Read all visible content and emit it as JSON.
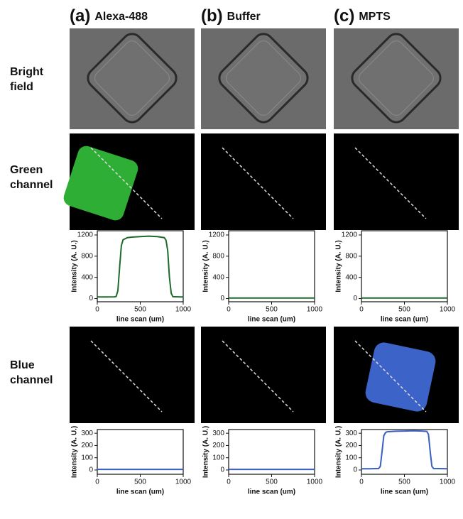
{
  "figure": {
    "columns": [
      {
        "letter": "(a)",
        "name": "Alexa-488"
      },
      {
        "letter": "(b)",
        "name": "Buffer"
      },
      {
        "letter": "(c)",
        "name": "MPTS"
      }
    ],
    "rows": [
      [
        "Bright",
        "field"
      ],
      [
        "Green",
        "channel"
      ],
      [
        "Blue",
        "channel"
      ]
    ]
  },
  "chart_data": [
    {
      "type": "line",
      "xlabel": "line scan (um)",
      "ylabel": "Intensity (A. U.)",
      "xlim": [
        0,
        1000
      ],
      "ylim": [
        -60,
        1280
      ],
      "xticks": [
        0,
        500,
        1000
      ],
      "yticks": [
        0,
        400,
        800,
        1200
      ],
      "color": "#1d6b2c",
      "x": [
        0,
        100,
        200,
        220,
        240,
        260,
        280,
        300,
        350,
        400,
        500,
        600,
        700,
        780,
        800,
        820,
        840,
        860,
        880,
        1000
      ],
      "values": [
        30,
        30,
        32,
        40,
        150,
        600,
        1000,
        1110,
        1150,
        1160,
        1170,
        1178,
        1170,
        1150,
        1100,
        900,
        400,
        100,
        35,
        30
      ]
    },
    {
      "type": "line",
      "xlabel": "line scan (um)",
      "ylabel": "Intensity (A. U.)",
      "xlim": [
        0,
        1000
      ],
      "ylim": [
        -60,
        1280
      ],
      "xticks": [
        0,
        500,
        1000
      ],
      "yticks": [
        0,
        400,
        800,
        1200
      ],
      "color": "#1d6b2c",
      "x": [
        0,
        250,
        500,
        750,
        1000
      ],
      "values": [
        10,
        10,
        10,
        10,
        10
      ]
    },
    {
      "type": "line",
      "xlabel": "line scan (um)",
      "ylabel": "Intensity (A. U.)",
      "xlim": [
        0,
        1000
      ],
      "ylim": [
        -60,
        1280
      ],
      "xticks": [
        0,
        500,
        1000
      ],
      "yticks": [
        0,
        400,
        800,
        1200
      ],
      "color": "#1d6b2c",
      "x": [
        0,
        250,
        500,
        750,
        1000
      ],
      "values": [
        10,
        10,
        10,
        10,
        10
      ]
    },
    {
      "type": "line",
      "xlabel": "line scan (um)",
      "ylabel": "Intensity (A. U.)",
      "xlim": [
        0,
        1000
      ],
      "ylim": [
        -35,
        330
      ],
      "xticks": [
        0,
        500,
        1000
      ],
      "yticks": [
        0,
        100,
        200,
        300
      ],
      "color": "#3a5fc0",
      "x": [
        0,
        250,
        500,
        750,
        1000
      ],
      "values": [
        5,
        5,
        5,
        5,
        5
      ]
    },
    {
      "type": "line",
      "xlabel": "line scan (um)",
      "ylabel": "Intensity (A. U.)",
      "xlim": [
        0,
        1000
      ],
      "ylim": [
        -35,
        330
      ],
      "xticks": [
        0,
        500,
        1000
      ],
      "yticks": [
        0,
        100,
        200,
        300
      ],
      "color": "#3a5fc0",
      "x": [
        0,
        250,
        500,
        750,
        1000
      ],
      "values": [
        5,
        5,
        5,
        5,
        5
      ]
    },
    {
      "type": "line",
      "xlabel": "line scan (um)",
      "ylabel": "Intensity (A. U.)",
      "xlim": [
        0,
        1000
      ],
      "ylim": [
        -35,
        330
      ],
      "xticks": [
        0,
        500,
        1000
      ],
      "yticks": [
        0,
        100,
        200,
        300
      ],
      "color": "#3a5fc0",
      "x": [
        0,
        100,
        200,
        220,
        240,
        260,
        280,
        300,
        400,
        500,
        600,
        700,
        760,
        780,
        800,
        820,
        840,
        1000
      ],
      "values": [
        10,
        10,
        12,
        30,
        150,
        280,
        305,
        312,
        316,
        318,
        320,
        318,
        315,
        290,
        150,
        30,
        12,
        10
      ]
    }
  ]
}
